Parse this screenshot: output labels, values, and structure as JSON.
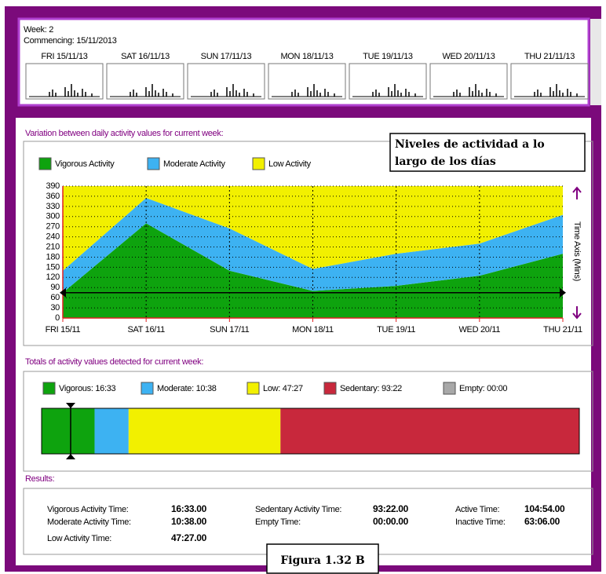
{
  "week_panel": {
    "week": "Week: 2",
    "commencing": "Commencing: 15/11/2013",
    "days": [
      {
        "label": "FRI 15/11/13",
        "color": "#000000"
      },
      {
        "label": "SAT 16/11/13",
        "color": "#e02020"
      },
      {
        "label": "SUN 17/11/13",
        "color": "#e02020"
      },
      {
        "label": "MON 18/11/13",
        "color": "#000000"
      },
      {
        "label": "TUE 19/11/13",
        "color": "#000000"
      },
      {
        "label": "WED 20/11/13",
        "color": "#000000"
      },
      {
        "label": "THU 21/11/13",
        "color": "#000000"
      }
    ]
  },
  "variation_heading": "Variation between daily activity values for current week:",
  "annotation": [
    "Niveles de actividad a lo",
    "largo de los días"
  ],
  "totals_heading": "Totals of activity values detected for current week:",
  "results_heading": "Results:",
  "chart_data": [
    {
      "type": "stacked_area",
      "categories": [
        "FRI 15/11",
        "SAT 16/11",
        "SUN 17/11",
        "MON 18/11",
        "TUE 19/11",
        "WED 20/11",
        "THU 21/11"
      ],
      "series": [
        {
          "name": "Vigorous Activity",
          "color": "#0ea30e",
          "values": [
            75,
            280,
            140,
            80,
            95,
            125,
            190
          ]
        },
        {
          "name": "Moderate Activity",
          "color": "#3db2f2",
          "values": [
            65,
            75,
            125,
            65,
            95,
            95,
            115
          ]
        },
        {
          "name": "Low Activity",
          "color": "#f2f000",
          "values": [
            250,
            35,
            125,
            245,
            200,
            170,
            85
          ]
        }
      ],
      "ylim": [
        0,
        390
      ],
      "yticks": [
        0,
        30,
        60,
        90,
        120,
        150,
        180,
        210,
        240,
        270,
        300,
        330,
        360,
        390
      ],
      "y_axis_label": "Time Axis (Mins)",
      "reference_line": 75,
      "grid": true
    },
    {
      "type": "stacked_bar",
      "series": [
        {
          "name": "Vigorous: 16:33",
          "color": "#0ea30e",
          "values": [
            16.55
          ]
        },
        {
          "name": "Moderate: 10:38",
          "color": "#3db2f2",
          "values": [
            10.633
          ]
        },
        {
          "name": "Low: 47:27",
          "color": "#f2f000",
          "values": [
            47.45
          ]
        },
        {
          "name": "Sedentary: 93:22",
          "color": "#c8283c",
          "values": [
            93.367
          ]
        },
        {
          "name": "Empty: 00:00",
          "color": "#a8a8a8",
          "values": [
            0
          ]
        }
      ]
    }
  ],
  "results": [
    [
      [
        "Vigorous Activity Time:",
        "16:33.00"
      ],
      [
        "Moderate Activity Time:",
        "10:38.00"
      ],
      [
        "Low Activity Time:",
        "47:27.00"
      ]
    ],
    [
      [
        "Sedentary Activity Time:",
        "93:22.00"
      ],
      [
        "Empty Time:",
        "00:00.00"
      ]
    ],
    [
      [
        "Active Time:",
        "104:54.00"
      ],
      [
        "Inactive Time:",
        "63:06.00"
      ]
    ]
  ],
  "caption": "Figura 1.32 B"
}
